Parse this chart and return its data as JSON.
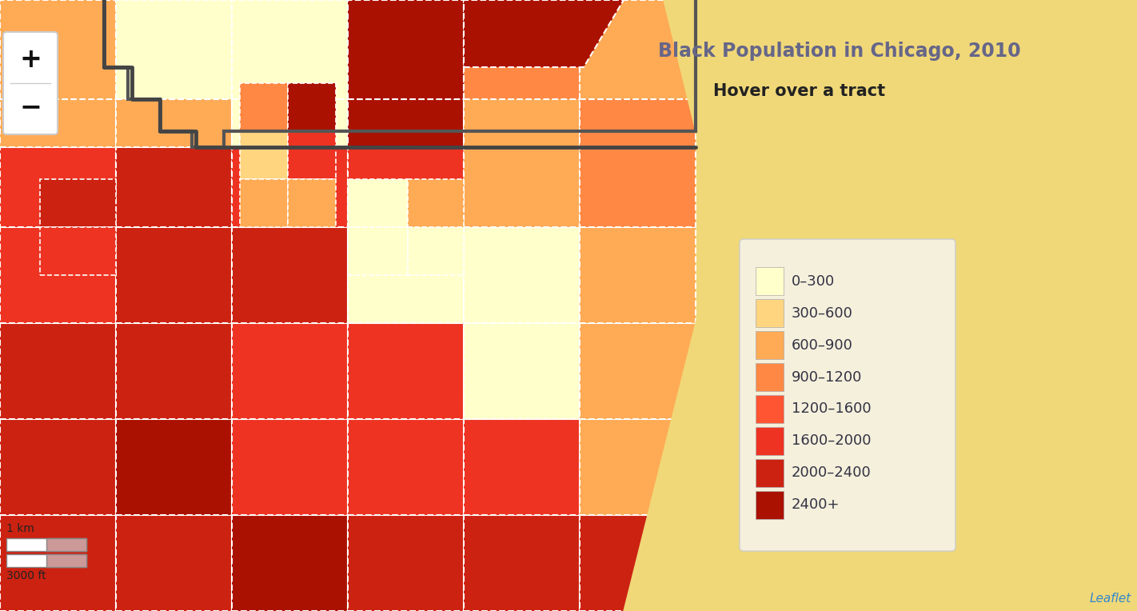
{
  "title": "Black Population in Chicago, 2010",
  "subtitle": "Hover over a tract",
  "background_color": "#F0D878",
  "map_background": "#F0D878",
  "legend_bg": "#F5F0DC",
  "legend_items": [
    {
      "label": "0–300",
      "color": "#FFFFCC"
    },
    {
      "label": "300–600",
      "color": "#FFD580"
    },
    {
      "label": "600–900",
      "color": "#FFAA55"
    },
    {
      "label": "900–1200",
      "color": "#FF8844"
    },
    {
      "label": "1200–1600",
      "color": "#FF5533"
    },
    {
      "label": "1600–2000",
      "color": "#EE3322"
    },
    {
      "label": "2000–2400",
      "color": "#CC2211"
    },
    {
      "label": "2400+",
      "color": "#AA1100"
    }
  ],
  "title_color": "#666688",
  "subtitle_color": "#222222",
  "zoom_box_color": "#FFFFFF",
  "zoom_border_color": "#BBBBBB",
  "leaflet_color": "#3388CC",
  "scale_bar_color": "#CC9999",
  "border_color": "#555555",
  "tract_border_color": "#FFFFFF"
}
